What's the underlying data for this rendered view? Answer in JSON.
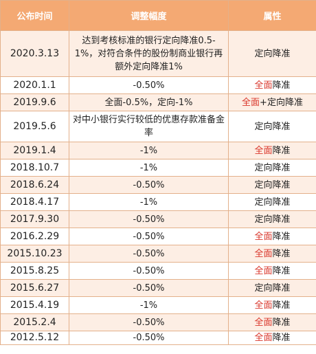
{
  "headers": [
    "公布时间",
    "调整幅度",
    "属性"
  ],
  "rows": [
    {
      "date": "2020.3.13",
      "change": "达到考核标准的银行定向降准0.5-1%，对符合条件的股份制商业银行再额外定向降准1%",
      "type_red": "",
      "type_plus": "",
      "type_black": "定向降准"
    },
    {
      "date": "2020.1.1",
      "change": "-0.50%",
      "type_red": "全面",
      "type_plus": "",
      "type_black": "降准"
    },
    {
      "date": "2019.9.6",
      "change": "全面-0.5%，定向-1%",
      "type_red": "全面",
      "type_plus": "+",
      "type_black": "定向降准"
    },
    {
      "date": "2019.5.6",
      "change": "对中小银行实行较低的优惠存款准备金率",
      "type_red": "",
      "type_plus": "",
      "type_black": "定向降准"
    },
    {
      "date": "2019.1.4",
      "change": "-1%",
      "type_red": "全面",
      "type_plus": "",
      "type_black": "降准"
    },
    {
      "date": "2018.10.7",
      "change": "-1%",
      "type_red": "",
      "type_plus": "",
      "type_black": "定向降准"
    },
    {
      "date": "2018.6.24",
      "change": "-0.50%",
      "type_red": "",
      "type_plus": "",
      "type_black": "定向降准"
    },
    {
      "date": "2018.4.17",
      "change": "-1%",
      "type_red": "",
      "type_plus": "",
      "type_black": "定向降准"
    },
    {
      "date": "2017.9.30",
      "change": "-0.50%",
      "type_red": "",
      "type_plus": "",
      "type_black": "定向降准"
    },
    {
      "date": "2016.2.29",
      "change": "-0.50%",
      "type_red": "全面",
      "type_plus": "",
      "type_black": "降准"
    },
    {
      "date": "2015.10.23",
      "change": "-0.50%",
      "type_red": "全面",
      "type_plus": "",
      "type_black": "降准"
    },
    {
      "date": "2015.8.25",
      "change": "-0.50%",
      "type_red": "全面",
      "type_plus": "",
      "type_black": "降准"
    },
    {
      "date": "2015.6.27",
      "change": "-0.50%",
      "type_red": "",
      "type_plus": "",
      "type_black": "定向降准"
    },
    {
      "date": "2015.4.19",
      "change": "-1%",
      "type_red": "全面",
      "type_plus": "",
      "type_black": "降准"
    },
    {
      "date": "2015.2.4",
      "change": "-0.50%",
      "type_red": "全面",
      "type_plus": "",
      "type_black": "降准"
    },
    {
      "date": "2012.5.12",
      "change": "-0.50%",
      "type_red": "全面",
      "type_plus": "",
      "type_black": "降准"
    }
  ],
  "colors": {
    "header_bg": "#f4a973",
    "stripe_bg": "#fdeee4",
    "border": "#e3b08a",
    "accent_red": "#d9352a"
  }
}
